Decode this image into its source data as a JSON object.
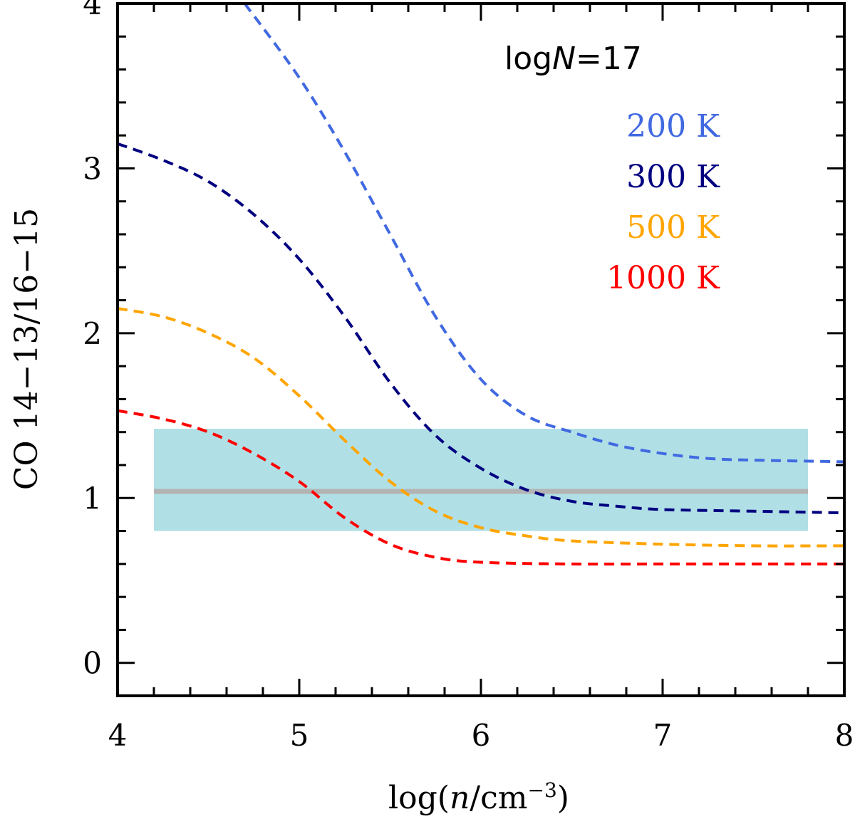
{
  "chart_data": {
    "type": "line",
    "xlabel": "log(n/cm⁻³)",
    "ylabel": "CO 14−13/16−15",
    "xlim": [
      4,
      8
    ],
    "ylim": [
      -0.2,
      4
    ],
    "x_ticks": [
      4,
      5,
      6,
      7,
      8
    ],
    "y_ticks": [
      0,
      1,
      2,
      3,
      4
    ],
    "annotation": {
      "prefix": "log",
      "variable": "N",
      "suffix": "=17"
    },
    "observed": {
      "x_range": [
        4.2,
        7.8
      ],
      "band": [
        0.8,
        1.42
      ],
      "value": 1.04,
      "band_color": "#b0e0e6",
      "line_color": "#b3b3b3"
    },
    "series": [
      {
        "name": "200 K",
        "color": "#4169e1",
        "x": [
          4.7,
          5.0,
          5.25,
          5.5,
          5.75,
          6.0,
          6.25,
          6.5,
          6.75,
          7.0,
          7.25,
          7.5,
          8.0
        ],
        "y": [
          4.0,
          3.55,
          3.1,
          2.6,
          2.1,
          1.72,
          1.5,
          1.4,
          1.32,
          1.27,
          1.24,
          1.23,
          1.22
        ]
      },
      {
        "name": "300 K",
        "color": "#000080",
        "x": [
          4.0,
          4.25,
          4.5,
          4.75,
          5.0,
          5.25,
          5.5,
          5.75,
          6.0,
          6.25,
          6.5,
          6.75,
          7.0,
          7.5,
          8.0
        ],
        "y": [
          3.15,
          3.05,
          2.92,
          2.72,
          2.45,
          2.1,
          1.7,
          1.38,
          1.18,
          1.05,
          0.98,
          0.95,
          0.93,
          0.92,
          0.91
        ]
      },
      {
        "name": "500 K",
        "color": "#ffa500",
        "x": [
          4.0,
          4.25,
          4.5,
          4.75,
          5.0,
          5.25,
          5.5,
          5.75,
          6.0,
          6.25,
          6.5,
          7.0,
          7.5,
          8.0
        ],
        "y": [
          2.15,
          2.1,
          2.0,
          1.85,
          1.62,
          1.35,
          1.1,
          0.92,
          0.82,
          0.77,
          0.74,
          0.72,
          0.71,
          0.71
        ]
      },
      {
        "name": "1000 K",
        "color": "#ff0000",
        "x": [
          4.0,
          4.25,
          4.5,
          4.75,
          5.0,
          5.25,
          5.5,
          5.75,
          6.0,
          6.5,
          7.0,
          7.5,
          8.0
        ],
        "y": [
          1.53,
          1.48,
          1.4,
          1.27,
          1.1,
          0.88,
          0.72,
          0.64,
          0.61,
          0.6,
          0.6,
          0.6,
          0.6
        ]
      }
    ]
  }
}
